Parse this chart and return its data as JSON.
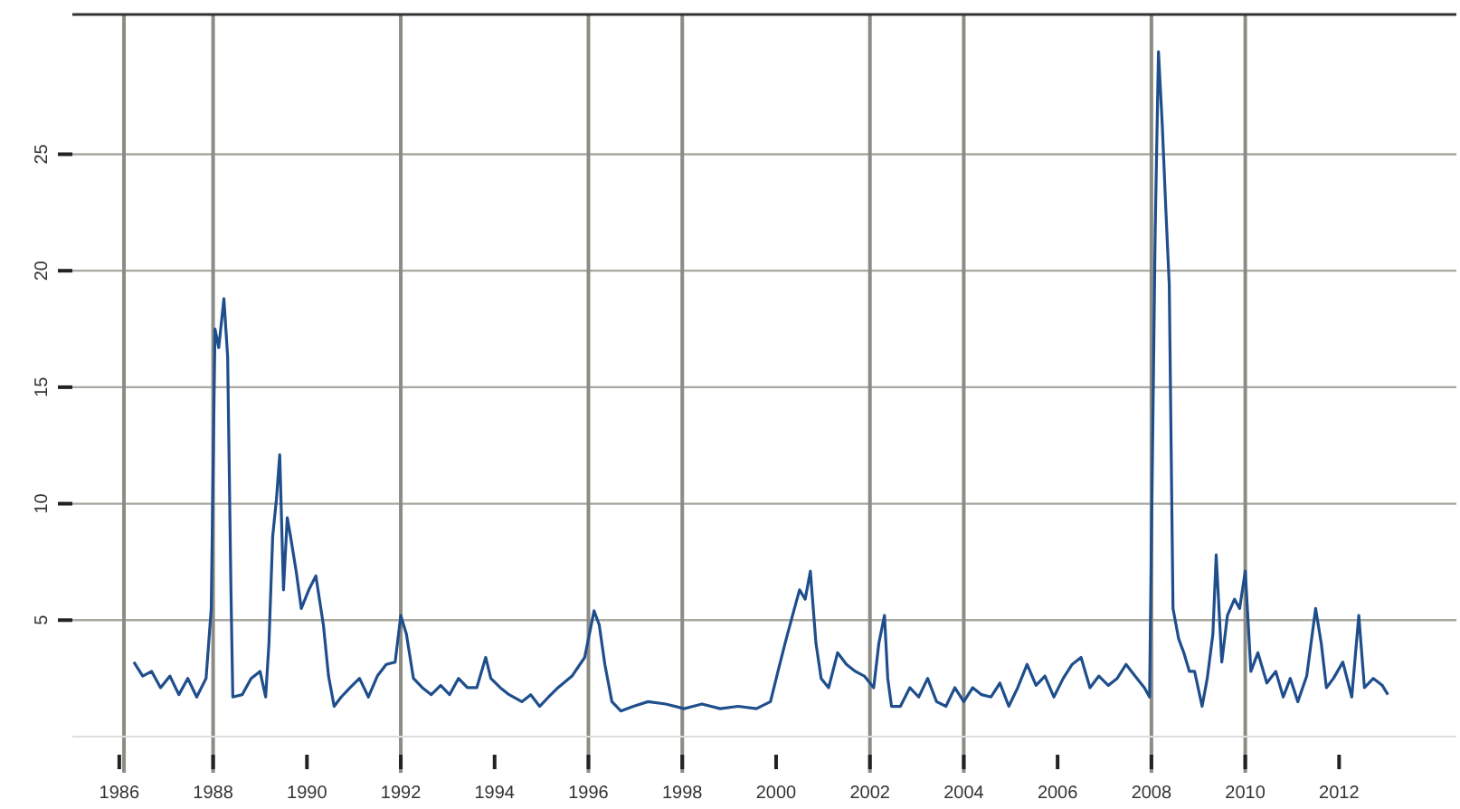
{
  "chart_data": {
    "type": "line",
    "x": [
      1986.31,
      1986.5,
      1986.69,
      1986.88,
      1987.08,
      1987.27,
      1987.46,
      1987.65,
      1987.85,
      1987.96,
      1988.04,
      1988.12,
      1988.23,
      1988.31,
      1988.38,
      1988.42,
      1988.62,
      1988.81,
      1989.0,
      1989.12,
      1989.19,
      1989.27,
      1989.35,
      1989.42,
      1989.5,
      1989.58,
      1989.65,
      1989.77,
      1989.88,
      1990.04,
      1990.19,
      1990.35,
      1990.46,
      1990.58,
      1990.73,
      1990.92,
      1991.12,
      1991.31,
      1991.5,
      1991.69,
      1991.88,
      1992.0,
      1992.12,
      1992.27,
      1992.46,
      1992.65,
      1992.85,
      1993.04,
      1993.23,
      1993.42,
      1993.62,
      1993.81,
      1993.92,
      1994.12,
      1994.31,
      1994.58,
      1994.77,
      1994.96,
      1995.15,
      1995.35,
      1995.65,
      1995.92,
      1996.04,
      1996.12,
      1996.23,
      1996.35,
      1996.5,
      1996.69,
      1996.96,
      1997.27,
      1997.65,
      1998.04,
      1998.42,
      1998.81,
      1999.19,
      1999.58,
      1999.88,
      2000.04,
      2000.19,
      2000.35,
      2000.5,
      2000.62,
      2000.73,
      2000.85,
      2000.96,
      2001.12,
      2001.31,
      2001.5,
      2001.69,
      2001.88,
      2002.08,
      2002.19,
      2002.31,
      2002.38,
      2002.46,
      2002.65,
      2002.85,
      2003.04,
      2003.23,
      2003.42,
      2003.62,
      2003.81,
      2004.0,
      2004.19,
      2004.38,
      2004.58,
      2004.77,
      2004.96,
      2005.15,
      2005.35,
      2005.54,
      2005.73,
      2005.92,
      2006.12,
      2006.31,
      2006.5,
      2006.69,
      2006.88,
      2007.08,
      2007.27,
      2007.46,
      2007.65,
      2007.85,
      2007.96,
      2008.08,
      2008.15,
      2008.23,
      2008.31,
      2008.38,
      2008.46,
      2008.58,
      2008.69,
      2008.81,
      2008.92,
      2009.08,
      2009.19,
      2009.31,
      2009.38,
      2009.5,
      2009.62,
      2009.77,
      2009.88,
      2010.0,
      2010.12,
      2010.27,
      2010.46,
      2010.65,
      2010.81,
      2010.96,
      2011.12,
      2011.31,
      2011.5,
      2011.62,
      2011.73,
      2011.88,
      2012.08,
      2012.27,
      2012.42,
      2012.54,
      2012.73,
      2012.92,
      2013.04
    ],
    "series": [
      {
        "color": "#1f4e8c",
        "values": [
          3.2,
          2.6,
          2.8,
          2.1,
          2.6,
          1.8,
          2.5,
          1.7,
          2.5,
          5.5,
          17.5,
          16.7,
          18.8,
          16.3,
          6.3,
          1.7,
          1.8,
          2.5,
          2.8,
          1.7,
          4.0,
          8.6,
          10.2,
          12.1,
          6.3,
          9.4,
          8.6,
          7.1,
          5.5,
          6.3,
          6.9,
          4.8,
          2.6,
          1.3,
          1.7,
          2.1,
          2.5,
          1.7,
          2.6,
          3.1,
          3.2,
          5.2,
          4.4,
          2.5,
          2.1,
          1.8,
          2.2,
          1.8,
          2.5,
          2.1,
          2.1,
          3.4,
          2.5,
          2.1,
          1.8,
          1.5,
          1.8,
          1.3,
          1.7,
          2.1,
          2.6,
          3.4,
          4.6,
          5.4,
          4.8,
          3.1,
          1.5,
          1.1,
          1.3,
          1.5,
          1.4,
          1.2,
          1.4,
          1.2,
          1.3,
          1.2,
          1.5,
          2.8,
          4.0,
          5.2,
          6.3,
          5.9,
          7.1,
          4.0,
          2.5,
          2.1,
          3.6,
          3.1,
          2.8,
          2.6,
          2.1,
          4.0,
          5.2,
          2.5,
          1.3,
          1.3,
          2.1,
          1.7,
          2.5,
          1.5,
          1.3,
          2.1,
          1.5,
          2.1,
          1.8,
          1.7,
          2.3,
          1.3,
          2.1,
          3.1,
          2.2,
          2.6,
          1.7,
          2.5,
          3.1,
          3.4,
          2.1,
          2.6,
          2.2,
          2.5,
          3.1,
          2.6,
          2.1,
          1.7,
          21.7,
          29.4,
          26.3,
          22.5,
          19.4,
          5.5,
          4.2,
          3.6,
          2.8,
          2.8,
          1.3,
          2.5,
          4.4,
          7.8,
          3.2,
          5.2,
          5.9,
          5.5,
          7.1,
          2.8,
          3.6,
          2.3,
          2.8,
          1.7,
          2.5,
          1.5,
          2.6,
          5.5,
          4.0,
          2.1,
          2.5,
          3.2,
          1.7,
          5.2,
          2.1,
          2.5,
          2.2,
          1.8
        ]
      }
    ],
    "xlim": [
      1985,
      2014.5
    ],
    "xticks": [
      1986,
      1988,
      1990,
      1992,
      1994,
      1996,
      1998,
      2000,
      2002,
      2004,
      2006,
      2008,
      2010,
      2012
    ],
    "ylim": [
      0,
      31
    ],
    "yticks": [
      5,
      10,
      15,
      20,
      25
    ],
    "grid": "y",
    "ref_lines": [
      {
        "axis": "x",
        "value": 1986.1,
        "color": "#8c8c84"
      },
      {
        "axis": "x",
        "value": 1988,
        "color": "#8c8c84"
      },
      {
        "axis": "x",
        "value": 1992,
        "color": "#8c8c84"
      },
      {
        "axis": "x",
        "value": 1996,
        "color": "#8c8c84"
      },
      {
        "axis": "x",
        "value": 1998,
        "color": "#8c8c84"
      },
      {
        "axis": "x",
        "value": 2002,
        "color": "#8c8c84"
      },
      {
        "axis": "x",
        "value": 2004,
        "color": "#8c8c84"
      },
      {
        "axis": "x",
        "value": 2008,
        "color": "#8c8c84"
      },
      {
        "axis": "x",
        "value": 2010,
        "color": "#8c8c84"
      }
    ]
  }
}
